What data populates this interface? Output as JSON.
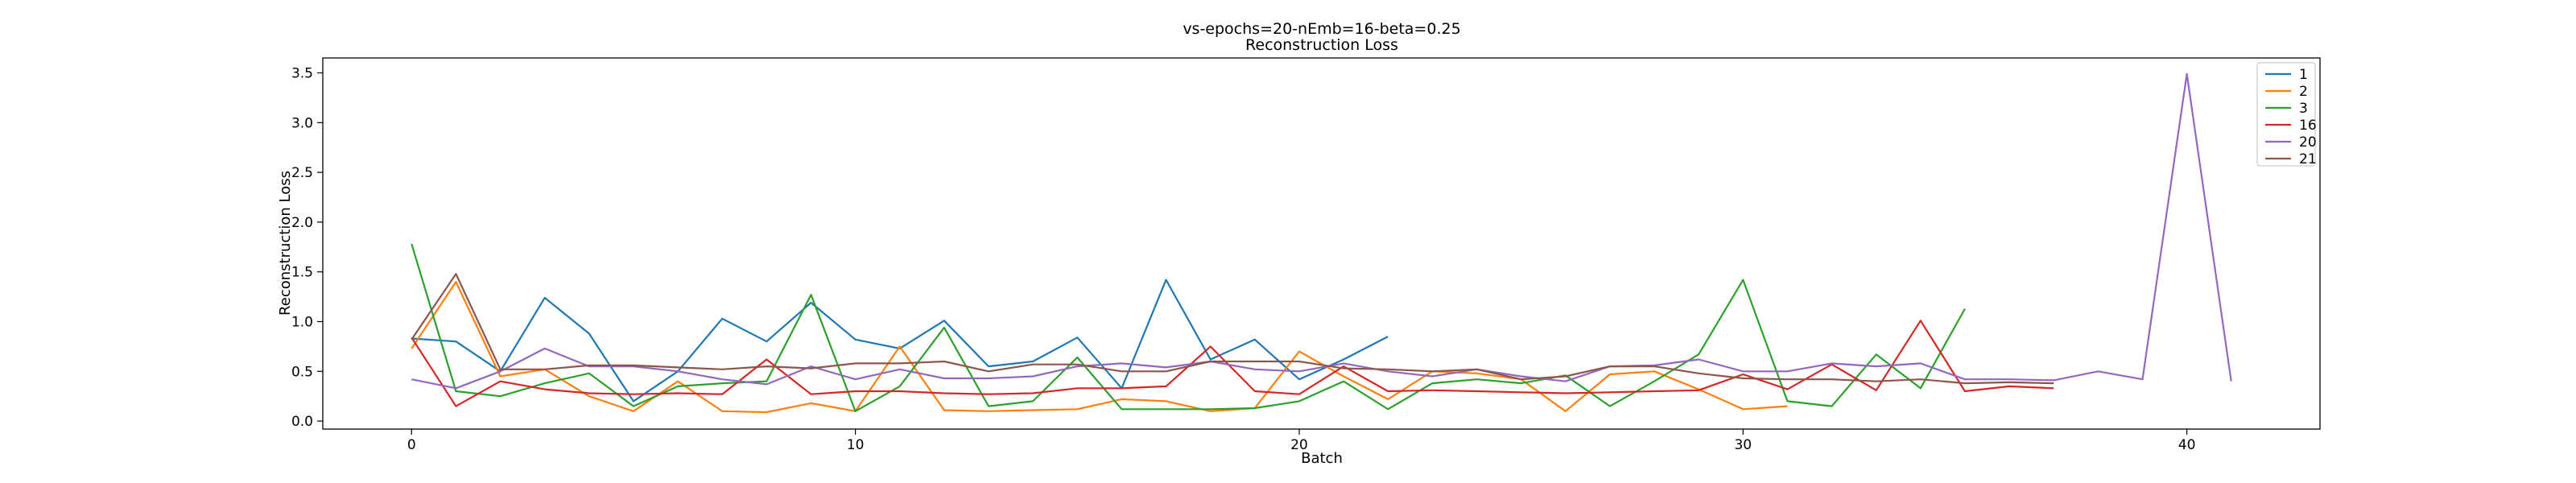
{
  "chart_data": {
    "type": "line",
    "title": "vs-epochs=20-nEmb=16-beta=0.25",
    "subtitle": "Reconstruction Loss",
    "xlabel": "Batch",
    "ylabel": "Reconstruction Loss",
    "xlim": [
      -2,
      43
    ],
    "ylim": [
      -0.08,
      3.65
    ],
    "xticks": [
      0,
      10,
      20,
      30,
      40
    ],
    "yticks": [
      0.0,
      0.5,
      1.0,
      1.5,
      2.0,
      2.5,
      3.0,
      3.5
    ],
    "xtick_labels": [
      "0",
      "10",
      "20",
      "30",
      "40"
    ],
    "ytick_labels": [
      "0.0",
      "0.5",
      "1.0",
      "1.5",
      "2.0",
      "2.5",
      "3.0",
      "3.5"
    ],
    "grid": false,
    "legend_position": "top-right",
    "series": [
      {
        "name": "1",
        "color": "#1f77b4",
        "values": [
          0.83,
          0.8,
          0.5,
          1.24,
          0.88,
          0.2,
          0.5,
          1.03,
          0.8,
          1.19,
          0.82,
          0.73,
          1.01,
          0.55,
          0.6,
          0.84,
          0.33,
          1.42,
          0.62,
          0.82,
          0.42,
          0.62,
          0.85
        ]
      },
      {
        "name": "2",
        "color": "#ff7f0e",
        "values": [
          0.73,
          1.4,
          0.45,
          0.52,
          0.25,
          0.1,
          0.4,
          0.1,
          0.09,
          0.18,
          0.1,
          0.75,
          0.11,
          0.1,
          0.11,
          0.12,
          0.22,
          0.2,
          0.1,
          0.13,
          0.7,
          0.45,
          0.22,
          0.5,
          0.48,
          0.42,
          0.1,
          0.47,
          0.5,
          0.32,
          0.12,
          0.15
        ]
      },
      {
        "name": "3",
        "color": "#2ca02c",
        "values": [
          1.78,
          0.3,
          0.25,
          0.38,
          0.48,
          0.15,
          0.35,
          0.38,
          0.4,
          1.27,
          0.1,
          0.35,
          0.94,
          0.15,
          0.2,
          0.64,
          0.12,
          0.12,
          0.12,
          0.13,
          0.2,
          0.4,
          0.12,
          0.38,
          0.42,
          0.38,
          0.46,
          0.15,
          0.4,
          0.67,
          1.42,
          0.2,
          0.15,
          0.67,
          0.33,
          1.13
        ]
      },
      {
        "name": "16",
        "color": "#d62728",
        "values": [
          0.84,
          0.15,
          0.4,
          0.32,
          0.28,
          0.27,
          0.28,
          0.27,
          0.62,
          0.27,
          0.3,
          0.3,
          0.28,
          0.27,
          0.28,
          0.33,
          0.33,
          0.35,
          0.75,
          0.3,
          0.27,
          0.55,
          0.3,
          0.31,
          0.3,
          0.29,
          0.28,
          0.29,
          0.3,
          0.31,
          0.47,
          0.32,
          0.57,
          0.31,
          1.01,
          0.3,
          0.35,
          0.33
        ]
      },
      {
        "name": "20",
        "color": "#9467bd",
        "values": [
          0.42,
          0.33,
          0.5,
          0.73,
          0.55,
          0.55,
          0.5,
          0.42,
          0.37,
          0.55,
          0.42,
          0.52,
          0.43,
          0.43,
          0.45,
          0.55,
          0.58,
          0.54,
          0.6,
          0.52,
          0.5,
          0.58,
          0.5,
          0.45,
          0.52,
          0.45,
          0.4,
          0.55,
          0.56,
          0.62,
          0.5,
          0.5,
          0.58,
          0.55,
          0.58,
          0.42,
          0.42,
          0.41,
          0.5,
          0.42,
          3.49,
          0.4
        ]
      },
      {
        "name": "21",
        "color": "#8c564b",
        "values": [
          0.82,
          1.48,
          0.52,
          0.52,
          0.56,
          0.56,
          0.54,
          0.52,
          0.55,
          0.53,
          0.58,
          0.58,
          0.6,
          0.5,
          0.57,
          0.57,
          0.5,
          0.5,
          0.6,
          0.6,
          0.6,
          0.53,
          0.52,
          0.5,
          0.52,
          0.42,
          0.45,
          0.55,
          0.55,
          0.48,
          0.43,
          0.42,
          0.42,
          0.4,
          0.42,
          0.38,
          0.39,
          0.38
        ]
      }
    ]
  }
}
